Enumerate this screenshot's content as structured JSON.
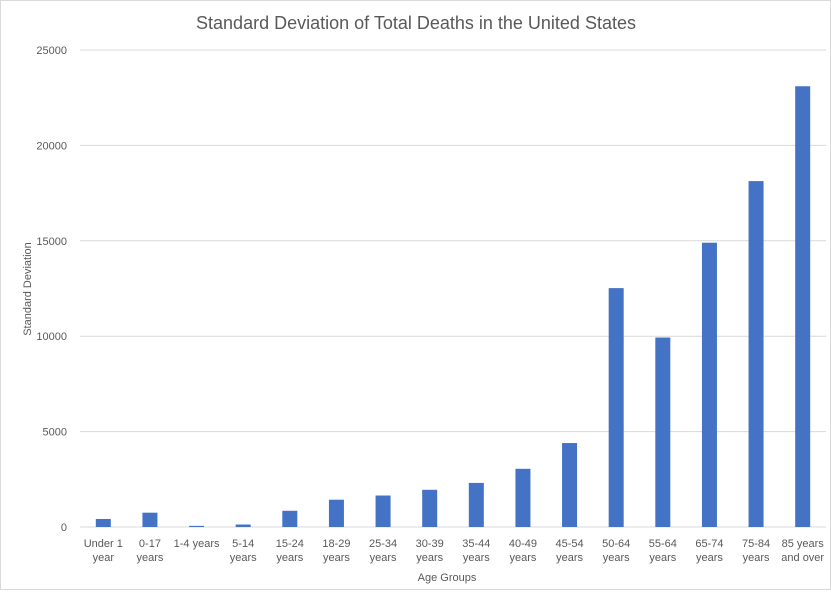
{
  "chart_data": {
    "type": "bar",
    "title": "Standard Deviation of Total Deaths in the United States",
    "xlabel": "Age Groups",
    "ylabel": "Standard Deviation",
    "ylim": [
      0,
      25000
    ],
    "yticks": [
      0,
      5000,
      10000,
      15000,
      20000,
      25000
    ],
    "grid": true,
    "legend": "none",
    "bar_color": "#4472C4",
    "categories": [
      [
        "Under 1",
        "year"
      ],
      [
        "0-17",
        "years"
      ],
      [
        "1-4 years"
      ],
      [
        "5-14",
        "years"
      ],
      [
        "15-24",
        "years"
      ],
      [
        "18-29",
        "years"
      ],
      [
        "25-34",
        "years"
      ],
      [
        "30-39",
        "years"
      ],
      [
        "35-44",
        "years"
      ],
      [
        "40-49",
        "years"
      ],
      [
        "45-54",
        "years"
      ],
      [
        "50-64",
        "years"
      ],
      [
        "55-64",
        "years"
      ],
      [
        "65-74",
        "years"
      ],
      [
        "75-84",
        "years"
      ],
      [
        "85 years",
        "and over"
      ]
    ],
    "values": [
      420,
      750,
      60,
      130,
      850,
      1430,
      1650,
      1950,
      2310,
      3050,
      4400,
      12520,
      9930,
      14900,
      18130,
      23100
    ]
  }
}
